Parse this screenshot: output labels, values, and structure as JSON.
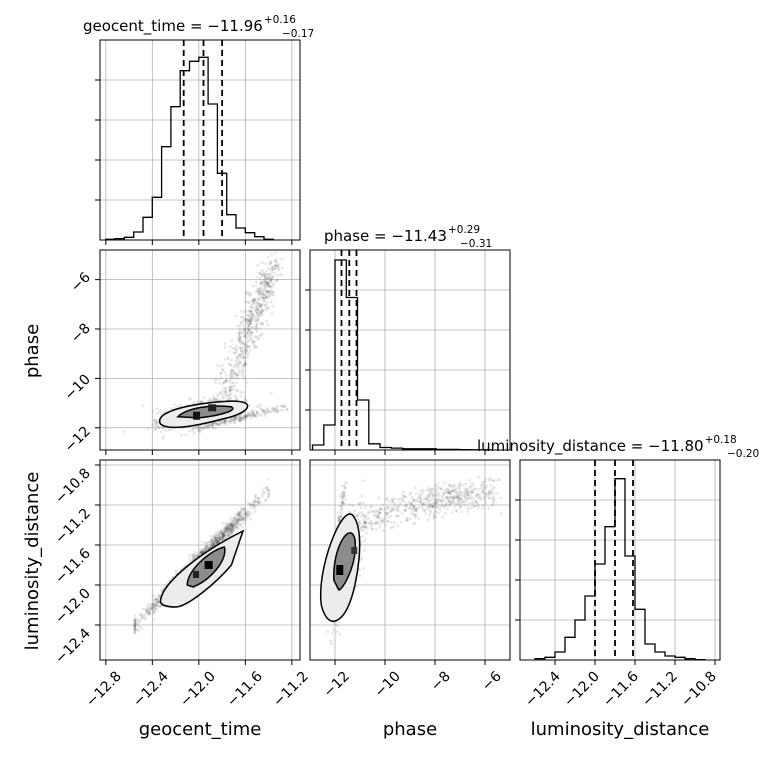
{
  "chart_data": {
    "type": "corner",
    "parameters": [
      "geocent_time",
      "phase",
      "luminosity_distance"
    ],
    "grid": true,
    "diagonal": [
      {
        "parameter": "geocent_time",
        "title": {
          "lhs": "geocent_time = ",
          "median": "−11.96",
          "plus": "+0.16",
          "minus": "−0.17"
        },
        "median": -11.96,
        "q16": -12.13,
        "q84": -11.8,
        "bins": [
          -12.8,
          -12.72,
          -12.64,
          -12.56,
          -12.48,
          -12.4,
          -12.32,
          -12.24,
          -12.16,
          -12.08,
          -12.0,
          -11.92,
          -11.84,
          -11.76,
          -11.68,
          -11.6,
          -11.52,
          -11.44,
          -11.36
        ],
        "counts": [
          0.005,
          0.01,
          0.02,
          0.06,
          0.17,
          0.32,
          0.7,
          1.0,
          1.27,
          1.34,
          1.37,
          1.02,
          0.5,
          0.19,
          0.09,
          0.055,
          0.025,
          0.005
        ],
        "xlim": [
          -12.85,
          -11.13
        ]
      },
      {
        "parameter": "phase",
        "title": {
          "lhs": "phase = ",
          "median": "−11.43",
          "plus": "+0.29",
          "minus": "−0.31"
        },
        "median": -11.43,
        "q16": -11.74,
        "q84": -11.14,
        "bins": [
          -12.9,
          -12.45,
          -12.0,
          -11.55,
          -11.1,
          -10.65,
          -10.2,
          -9.75,
          -9.3,
          -8.85,
          -8.4,
          -7.95,
          -7.5,
          -7.05,
          -6.6,
          -6.15,
          -5.7
        ],
        "counts": [
          0.04,
          0.2,
          1.52,
          1.22,
          0.4,
          0.05,
          0.02,
          0.015,
          0.01,
          0.01,
          0.01,
          0.005,
          0.005,
          0.003,
          0.002,
          0.001
        ],
        "xlim": [
          -13.0,
          -5.0
        ]
      },
      {
        "parameter": "luminosity_distance",
        "title": {
          "lhs": "luminosity_distance = ",
          "median": "−11.80",
          "plus": "+0.18",
          "minus": "−0.20"
        },
        "median": -11.8,
        "q16": -12.0,
        "q84": -11.62,
        "bins": [
          -12.6,
          -12.5,
          -12.4,
          -12.3,
          -12.2,
          -12.1,
          -12.0,
          -11.9,
          -11.8,
          -11.7,
          -11.6,
          -11.5,
          -11.4,
          -11.3,
          -11.2,
          -11.1,
          -11.0,
          -10.9
        ],
        "counts": [
          0.01,
          0.02,
          0.06,
          0.17,
          0.3,
          0.48,
          0.72,
          1.0,
          1.36,
          0.78,
          0.38,
          0.12,
          0.06,
          0.03,
          0.02,
          0.01,
          0.003
        ],
        "xlim": [
          -12.75,
          -10.75
        ]
      }
    ],
    "pairs": [
      {
        "x": "geocent_time",
        "y": "phase",
        "xlim": [
          -12.85,
          -11.13
        ],
        "ylim": [
          -12.9,
          -4.8
        ],
        "density_peak": {
          "x": -11.98,
          "y": -11.4
        },
        "main_cluster": {
          "x": [
            -12.4,
            -11.55
          ],
          "y": [
            -12.2,
            -10.9
          ]
        },
        "spread_arc": {
          "x": [
            -11.8,
            -11.35
          ],
          "y": [
            -11.0,
            -5.2
          ]
        }
      },
      {
        "x": "geocent_time",
        "y": "luminosity_distance",
        "xlim": [
          -12.85,
          -11.13
        ],
        "ylim": [
          -12.75,
          -10.75
        ],
        "trend": "linear positive",
        "from": {
          "x": -12.55,
          "y": -12.4
        },
        "to": {
          "x": -11.4,
          "y": -11.05
        },
        "density_peak": {
          "x": -11.95,
          "y": -11.83
        }
      },
      {
        "x": "phase",
        "y": "luminosity_distance",
        "xlim": [
          -13.0,
          -5.0
        ],
        "ylim": [
          -12.75,
          -10.75
        ],
        "density_peak": {
          "x": -11.55,
          "y": -11.8
        },
        "main_cluster": {
          "x": [
            -12.1,
            -10.8
          ],
          "y": [
            -12.3,
            -11.3
          ]
        },
        "spread_arc": {
          "x": [
            -11.0,
            -5.5
          ],
          "y": [
            -11.5,
            -11.0
          ]
        }
      }
    ],
    "ticks": {
      "geocent_time": {
        "values": [
          -12.8,
          -12.4,
          -12.0,
          -11.6,
          -11.2
        ],
        "labels": [
          "−12.8",
          "−12.4",
          "−12.0",
          "−11.6",
          "−11.2"
        ]
      },
      "phase_x": {
        "values": [
          -12,
          -10,
          -8,
          -6
        ],
        "labels": [
          "−12",
          "−10",
          "−8",
          "−6"
        ]
      },
      "phase_y": {
        "values": [
          -12,
          -10,
          -8,
          -6
        ],
        "labels": [
          "−12",
          "−10",
          "−8",
          "−6"
        ]
      },
      "luminosity_distance": {
        "values": [
          -12.4,
          -12.0,
          -11.6,
          -11.2,
          -10.8
        ],
        "labels": [
          "−12.4",
          "−12.0",
          "−11.6",
          "−11.2",
          "−10.8"
        ]
      }
    },
    "axis_labels": {
      "x": [
        "geocent_time",
        "phase",
        "luminosity_distance"
      ],
      "y": [
        "phase",
        "luminosity_distance"
      ]
    }
  }
}
